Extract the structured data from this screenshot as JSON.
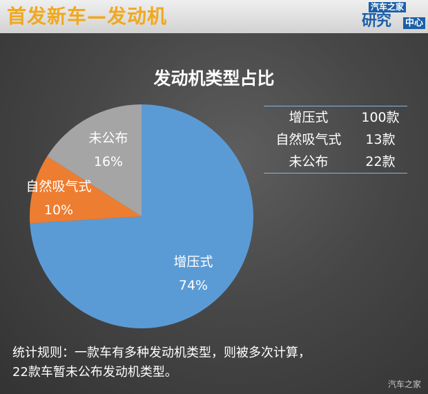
{
  "header": {
    "title": "首发新车—发动机",
    "logo_brand": "汽车之家",
    "logo_big": "研究",
    "logo_small": "中心"
  },
  "chart_data": {
    "type": "pie",
    "title": "发动机类型占比",
    "slices": [
      {
        "label": "增压式",
        "percent": "74%",
        "value": 74,
        "color": "#5b9bd5"
      },
      {
        "label": "自然吸气式",
        "percent": "10%",
        "value": 10,
        "color": "#ed7d31"
      },
      {
        "label": "未公布",
        "percent": "16%",
        "value": 16,
        "color": "#a5a5a5"
      }
    ],
    "table": [
      {
        "name": "增压式",
        "count": "100款"
      },
      {
        "name": "自然吸气式",
        "count": "13款"
      },
      {
        "name": "未公布",
        "count": "22款"
      }
    ]
  },
  "note": {
    "line1": "统计规则：一款车有多种发动机类型，则被多次计算，",
    "line2": "22款车暂未公布发动机类型。"
  },
  "watermark": "汽车之家"
}
